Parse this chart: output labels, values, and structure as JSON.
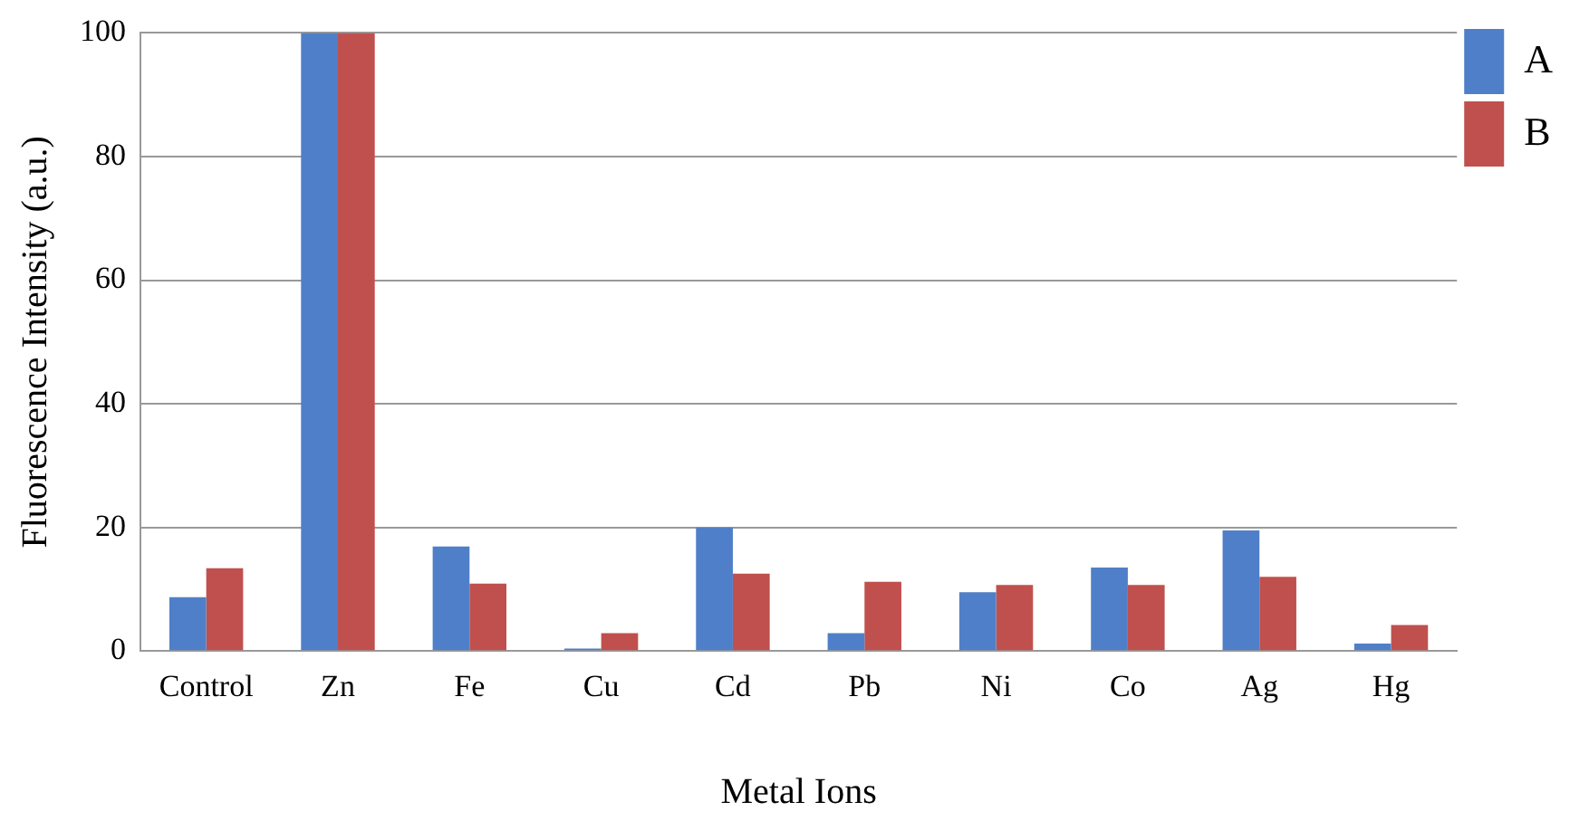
{
  "chart_data": {
    "type": "bar",
    "xlabel": "Metal Ions",
    "ylabel": "Fluorescence Intensity (a.u.)",
    "categories": [
      "Control",
      "Zn",
      "Fe",
      "Cu",
      "Cd",
      "Pb",
      "Ni",
      "Co",
      "Ag",
      "Hg"
    ],
    "series": [
      {
        "name": "A",
        "color": "#4f7fc8",
        "values": [
          8.7,
          100,
          16.9,
          0.4,
          20,
          2.9,
          9.5,
          13.5,
          19.5,
          1.2
        ]
      },
      {
        "name": "B",
        "color": "#c0504d",
        "values": [
          13.4,
          100,
          10.9,
          2.9,
          12.5,
          11.2,
          10.7,
          10.7,
          12,
          4.2
        ]
      }
    ],
    "ylim": [
      0,
      100
    ],
    "yticks": [
      0,
      20,
      40,
      60,
      80,
      100
    ],
    "grid": "y",
    "legend": "right"
  }
}
